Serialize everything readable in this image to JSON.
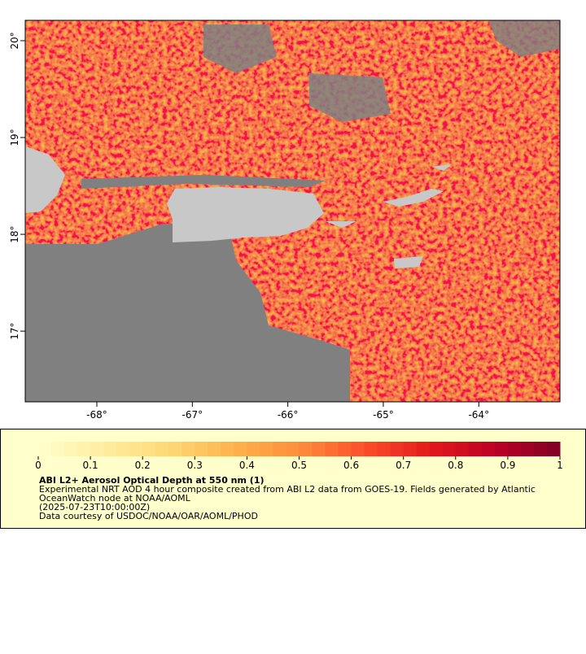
{
  "map": {
    "xlim": [
      -68.75,
      -63.15
    ],
    "ylim": [
      16.27,
      20.21
    ],
    "xticks": [
      {
        "value": -68,
        "label": "-68°"
      },
      {
        "value": -67,
        "label": "-67°"
      },
      {
        "value": -66,
        "label": "-66°"
      },
      {
        "value": -65,
        "label": "-65°"
      },
      {
        "value": -64,
        "label": "-64°"
      }
    ],
    "yticks": [
      {
        "value": 17,
        "label": "17°"
      },
      {
        "value": 18,
        "label": "18°"
      },
      {
        "value": 19,
        "label": "19°"
      },
      {
        "value": 20,
        "label": "20°"
      }
    ]
  },
  "legend": {
    "clim": [
      0,
      1
    ],
    "ticks": [
      0,
      0.1,
      0.2,
      0.3,
      0.4,
      0.5,
      0.6,
      0.7,
      0.8,
      0.9,
      1
    ],
    "colormap": [
      "#ffffcc",
      "#ffeda0",
      "#fed976",
      "#feb24c",
      "#fd8d3c",
      "#fc4e2a",
      "#e31a1c",
      "#bd0026",
      "#800026"
    ],
    "title": "ABI L2+ Aerosol Optical Depth at 550 nm (1)",
    "lines": [
      "Experimental NRT AOD 4 hour composite created from ABI L2 data from GOES-19. Fields generated by Atlantic",
      "OceanWatch node at NOAA/AOML",
      "(2025-07-23T10:00:00Z)",
      "Data courtesy of USDOC/NOAA/OAR/AOML/PHOD"
    ]
  }
}
